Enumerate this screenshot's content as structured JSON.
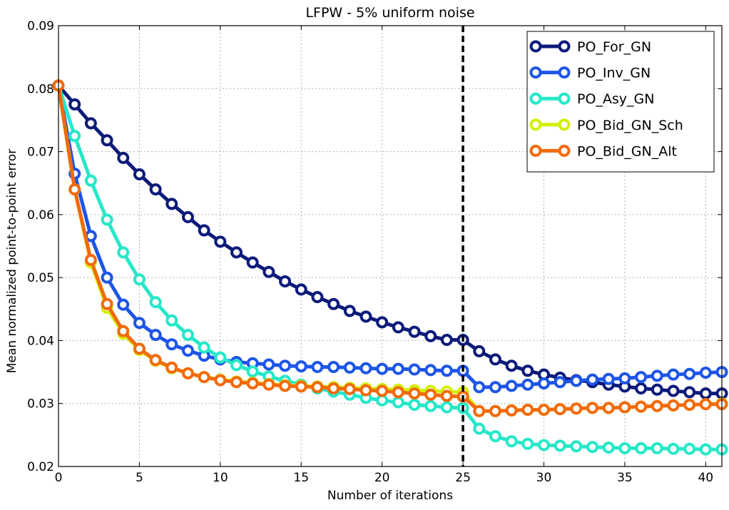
{
  "chart_data": {
    "type": "line",
    "title": "LFPW - 5% uniform noise",
    "xlabel": "Number of iterations",
    "ylabel": "Mean normalized point-to-point error",
    "xlim": [
      0,
      41
    ],
    "ylim": [
      0.02,
      0.09
    ],
    "xticks": [
      "0",
      "5",
      "10",
      "15",
      "20",
      "25",
      "30",
      "35",
      "40"
    ],
    "yticks": [
      "0.02",
      "0.03",
      "0.04",
      "0.05",
      "0.06",
      "0.07",
      "0.08",
      "0.09"
    ],
    "grid": true,
    "legend_position": "top-right",
    "vline_x": 25,
    "x": [
      0,
      1,
      2,
      3,
      4,
      5,
      6,
      7,
      8,
      9,
      10,
      11,
      12,
      13,
      14,
      15,
      16,
      17,
      18,
      19,
      20,
      21,
      22,
      23,
      24,
      25,
      26,
      27,
      28,
      29,
      30,
      31,
      32,
      33,
      34,
      35,
      36,
      37,
      38,
      39,
      40,
      41
    ],
    "series": [
      {
        "name": "PO_For_GN",
        "color": "#0c1a7a",
        "values": [
          0.0805,
          0.0775,
          0.0745,
          0.0718,
          0.069,
          0.0664,
          0.064,
          0.0617,
          0.0596,
          0.0575,
          0.0557,
          0.054,
          0.0524,
          0.0509,
          0.0494,
          0.0481,
          0.0469,
          0.0458,
          0.0447,
          0.0438,
          0.0429,
          0.0421,
          0.0414,
          0.0407,
          0.0401,
          0.0401,
          0.0383,
          0.037,
          0.036,
          0.0352,
          0.0346,
          0.0341,
          0.0337,
          0.0334,
          0.033,
          0.0327,
          0.0324,
          0.0322,
          0.032,
          0.0318,
          0.0316,
          0.0316
        ]
      },
      {
        "name": "PO_Inv_GN",
        "color": "#1e55e8",
        "values": [
          0.0805,
          0.0665,
          0.0566,
          0.05,
          0.0457,
          0.0428,
          0.0409,
          0.0394,
          0.0384,
          0.0376,
          0.037,
          0.0366,
          0.0364,
          0.0362,
          0.036,
          0.0359,
          0.0358,
          0.0358,
          0.0357,
          0.0356,
          0.0355,
          0.0355,
          0.0354,
          0.0353,
          0.0352,
          0.0352,
          0.0326,
          0.0326,
          0.0328,
          0.033,
          0.0332,
          0.0334,
          0.0336,
          0.0338,
          0.0339,
          0.034,
          0.0342,
          0.0344,
          0.0346,
          0.0347,
          0.0349,
          0.035
        ]
      },
      {
        "name": "PO_Asy_GN",
        "color": "#25e8c8",
        "values": [
          0.0805,
          0.0725,
          0.0654,
          0.0592,
          0.054,
          0.0497,
          0.0461,
          0.0432,
          0.0409,
          0.0389,
          0.0373,
          0.0361,
          0.0351,
          0.0343,
          0.0336,
          0.033,
          0.0324,
          0.0319,
          0.0314,
          0.0309,
          0.0305,
          0.0302,
          0.0298,
          0.0296,
          0.0294,
          0.0293,
          0.026,
          0.0248,
          0.024,
          0.0236,
          0.0234,
          0.0233,
          0.0232,
          0.0231,
          0.023,
          0.0229,
          0.0229,
          0.0229,
          0.0228,
          0.0228,
          0.0227,
          0.0227
        ]
      },
      {
        "name": "PO_Bid_GN_Sch",
        "color": "#d4ef00",
        "values": [
          0.0805,
          0.064,
          0.0524,
          0.0452,
          0.0411,
          0.0385,
          0.0368,
          0.0356,
          0.0348,
          0.0342,
          0.0338,
          0.0335,
          0.0333,
          0.0331,
          0.0329,
          0.0328,
          0.0327,
          0.0326,
          0.0325,
          0.0324,
          0.0323,
          0.0322,
          0.0321,
          0.032,
          0.0319,
          0.0318,
          0.0288,
          0.0288,
          0.0289,
          0.029,
          0.029,
          0.0291,
          0.0292,
          0.0293,
          0.0293,
          0.0294,
          0.0295,
          0.0296,
          0.0297,
          0.0298,
          0.0299,
          0.03
        ]
      },
      {
        "name": "PO_Bid_GN_Alt",
        "color": "#f26a0c",
        "values": [
          0.0805,
          0.064,
          0.0528,
          0.0458,
          0.0415,
          0.0387,
          0.0369,
          0.0357,
          0.0348,
          0.0342,
          0.0337,
          0.0334,
          0.0332,
          0.033,
          0.0328,
          0.0327,
          0.0326,
          0.0324,
          0.0323,
          0.0321,
          0.032,
          0.0318,
          0.0316,
          0.0314,
          0.0312,
          0.0311,
          0.0288,
          0.0288,
          0.0289,
          0.029,
          0.029,
          0.0291,
          0.0292,
          0.0293,
          0.0293,
          0.0294,
          0.0295,
          0.0296,
          0.0297,
          0.0298,
          0.0299,
          0.0299
        ]
      }
    ]
  }
}
